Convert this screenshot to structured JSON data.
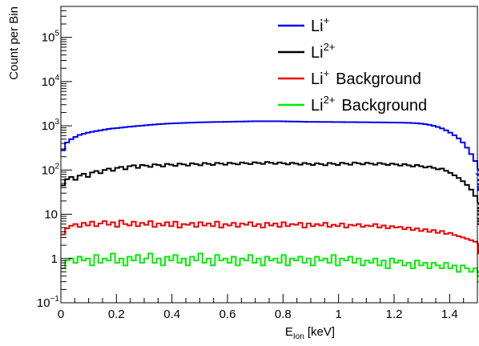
{
  "chart_data": {
    "type": "line",
    "step_histogram": true,
    "xlabel": "E",
    "xlabel_subscript": "Ion",
    "xlabel_unit": "[keV]",
    "ylabel": "Count per Bin",
    "xlim": [
      0,
      1.5
    ],
    "ylim": [
      0.1,
      500000
    ],
    "yscale": "log",
    "grid": false,
    "legend_position": "top-right",
    "x_ticks": [
      {
        "value": 0,
        "label": "0"
      },
      {
        "value": 0.2,
        "label": "0.2"
      },
      {
        "value": 0.4,
        "label": "0.4"
      },
      {
        "value": 0.6,
        "label": "0.6"
      },
      {
        "value": 0.8,
        "label": "0.8"
      },
      {
        "value": 1.0,
        "label": "1"
      },
      {
        "value": 1.2,
        "label": "1.2"
      },
      {
        "value": 1.4,
        "label": "1.4"
      }
    ],
    "y_ticks": [
      {
        "value": 0.1,
        "base": "10",
        "exp": "−1"
      },
      {
        "value": 1,
        "base": "1",
        "exp": ""
      },
      {
        "value": 10,
        "base": "10",
        "exp": ""
      },
      {
        "value": 100,
        "base": "10",
        "exp": "2"
      },
      {
        "value": 1000,
        "base": "10",
        "exp": "3"
      },
      {
        "value": 10000,
        "base": "10",
        "exp": "4"
      },
      {
        "value": 100000,
        "base": "10",
        "exp": "5"
      }
    ],
    "bin_start": 0.0,
    "bin_width": 0.015,
    "series": [
      {
        "name": "Li",
        "superscript": "+",
        "suffix": "",
        "color": "#0000ee",
        "values": [
          280,
          420,
          500,
          560,
          620,
          660,
          700,
          730,
          760,
          790,
          820,
          850,
          870,
          890,
          910,
          930,
          950,
          970,
          990,
          1010,
          1030,
          1050,
          1070,
          1090,
          1100,
          1120,
          1130,
          1140,
          1150,
          1160,
          1170,
          1180,
          1190,
          1200,
          1205,
          1210,
          1215,
          1220,
          1225,
          1230,
          1235,
          1240,
          1245,
          1250,
          1255,
          1260,
          1265,
          1270,
          1270,
          1270,
          1270,
          1270,
          1265,
          1260,
          1255,
          1250,
          1245,
          1240,
          1235,
          1230,
          1228,
          1226,
          1224,
          1222,
          1220,
          1218,
          1216,
          1214,
          1212,
          1210,
          1208,
          1206,
          1204,
          1202,
          1200,
          1198,
          1196,
          1194,
          1190,
          1186,
          1182,
          1178,
          1172,
          1164,
          1155,
          1140,
          1120,
          1090,
          1050,
          1000,
          940,
          870,
          790,
          700,
          610,
          520,
          420,
          320,
          230,
          160,
          110,
          80,
          60,
          48,
          42,
          38,
          36,
          35,
          35,
          35
        ]
      },
      {
        "name": "Li",
        "superscript": "2+",
        "suffix": "",
        "color": "#000000",
        "values": [
          45,
          62,
          70,
          60,
          75,
          82,
          70,
          88,
          95,
          85,
          100,
          108,
          96,
          112,
          118,
          104,
          122,
          128,
          112,
          130,
          126,
          118,
          135,
          130,
          120,
          138,
          132,
          124,
          140,
          134,
          126,
          142,
          136,
          128,
          144,
          138,
          130,
          145,
          140,
          132,
          146,
          140,
          134,
          148,
          142,
          136,
          150,
          144,
          138,
          152,
          146,
          138,
          148,
          142,
          134,
          146,
          140,
          132,
          144,
          138,
          130,
          142,
          136,
          128,
          144,
          138,
          130,
          146,
          140,
          132,
          148,
          142,
          134,
          146,
          140,
          132,
          144,
          138,
          130,
          140,
          134,
          126,
          136,
          128,
          120,
          130,
          122,
          114,
          120,
          112,
          104,
          108,
          96,
          86,
          76,
          66,
          56,
          46,
          36,
          26,
          19,
          14,
          12,
          10,
          8,
          7,
          7,
          6,
          6,
          6
        ]
      },
      {
        "name": "Li",
        "superscript": "+",
        "suffix": "Background",
        "color": "#ee0000",
        "values": [
          3.5,
          4.8,
          5.5,
          6.0,
          5.2,
          6.4,
          5.6,
          6.8,
          5.4,
          6.2,
          7.0,
          5.8,
          6.6,
          5.2,
          7.2,
          6.0,
          5.6,
          6.8,
          5.4,
          6.4,
          5.8,
          7.0,
          5.2,
          6.2,
          5.6,
          6.6,
          5.4,
          6.8,
          5.0,
          6.0,
          5.8,
          6.4,
          5.2,
          6.6,
          5.6,
          6.2,
          5.4,
          6.8,
          5.0,
          6.0,
          5.6,
          6.4,
          5.2,
          6.2,
          5.8,
          6.6,
          5.4,
          6.0,
          5.0,
          6.4,
          5.6,
          6.2,
          5.2,
          6.6,
          5.4,
          6.0,
          5.8,
          6.4,
          5.0,
          6.2,
          5.4,
          6.0,
          5.6,
          6.4,
          5.2,
          5.8,
          5.4,
          6.2,
          5.0,
          5.8,
          5.6,
          6.0,
          5.2,
          5.6,
          5.4,
          6.0,
          5.0,
          5.6,
          4.8,
          5.4,
          5.0,
          5.2,
          4.6,
          5.0,
          4.4,
          4.8,
          4.2,
          4.6,
          4.0,
          4.4,
          3.8,
          4.2,
          3.6,
          3.8,
          3.4,
          3.2,
          3.0,
          2.8,
          2.6,
          2.4,
          2.2,
          2.0,
          1.8,
          1.7,
          1.6,
          1.5,
          1.4,
          1.4,
          1.3,
          1.3
        ]
      },
      {
        "name": "Li",
        "superscript": "2+",
        "suffix": "Background",
        "color": "#00ee00",
        "values": [
          0.6,
          0.9,
          1.0,
          0.8,
          1.1,
          0.9,
          1.0,
          0.7,
          1.2,
          0.8,
          1.0,
          0.9,
          1.3,
          0.8,
          1.0,
          0.7,
          1.1,
          0.9,
          1.2,
          0.8,
          1.0,
          1.3,
          0.8,
          1.0,
          0.7,
          1.1,
          0.9,
          1.2,
          0.8,
          1.0,
          0.7,
          1.1,
          0.9,
          1.3,
          0.8,
          1.0,
          0.7,
          1.2,
          0.9,
          1.0,
          0.8,
          1.1,
          0.7,
          1.0,
          0.9,
          1.2,
          0.8,
          1.0,
          0.7,
          1.1,
          0.9,
          1.0,
          0.8,
          1.2,
          0.7,
          1.0,
          0.9,
          1.1,
          0.8,
          1.0,
          0.7,
          1.1,
          0.9,
          1.0,
          0.8,
          1.2,
          0.7,
          1.0,
          0.9,
          1.1,
          0.8,
          1.0,
          0.7,
          0.9,
          0.8,
          1.0,
          0.7,
          0.9,
          0.6,
          1.0,
          0.8,
          0.9,
          0.7,
          0.8,
          0.6,
          0.9,
          0.7,
          0.8,
          0.6,
          0.8,
          0.7,
          0.6,
          0.8,
          0.6,
          0.7,
          0.5,
          0.7,
          0.6,
          0.5,
          0.6,
          0.5,
          0.5,
          0.4,
          0.5,
          0.4,
          0.4,
          0.3,
          0.3,
          0.3,
          0.3
        ]
      }
    ]
  }
}
